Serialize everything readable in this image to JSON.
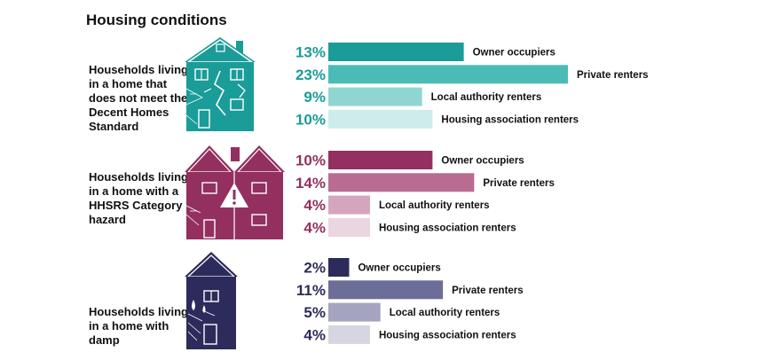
{
  "title": "Housing conditions",
  "chart_data": {
    "type": "bar",
    "title": "Housing conditions",
    "unit": "%",
    "categories": [
      "Owner occupiers",
      "Private renters",
      "Local authority renters",
      "Housing association renters"
    ],
    "groups": [
      {
        "label": "Households living in a home that does not meet the Decent Homes Standard",
        "icon": "house-cracked-icon",
        "color": "#1a9c98",
        "shades": [
          "#1a9c98",
          "#4bbbb7",
          "#8fd6d3",
          "#cdeceb"
        ],
        "values": [
          13,
          23,
          9,
          10
        ]
      },
      {
        "label": "Households living in a home with a HHSRS Category 1 hazard",
        "icon": "house-hazard-warning-icon",
        "color": "#93305f",
        "shades": [
          "#93305f",
          "#b96b91",
          "#d4a5bd",
          "#ead5e0"
        ],
        "values": [
          10,
          14,
          4,
          4
        ]
      },
      {
        "label": "Households living in a home with damp",
        "icon": "house-damp-icon",
        "color": "#2d2b5c",
        "shades": [
          "#2d2b5c",
          "#6d6d99",
          "#a4a4c0",
          "#d6d6e2"
        ],
        "values": [
          2,
          11,
          5,
          4
        ]
      }
    ]
  }
}
